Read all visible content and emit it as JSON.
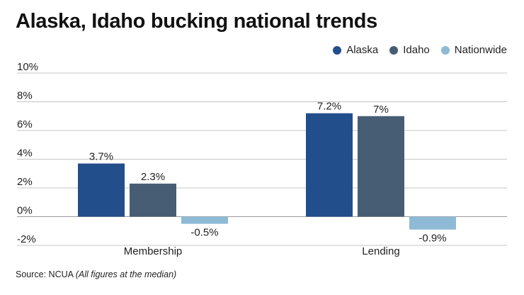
{
  "title": "Alaska, Idaho bucking national trends",
  "source_label": "Source: NCUA",
  "source_note": "(All figures at the median)",
  "chart_data": {
    "type": "bar",
    "categories": [
      "Membership",
      "Lending"
    ],
    "series": [
      {
        "name": "Alaska",
        "color": "#234e8c",
        "values": [
          3.7,
          7.2
        ],
        "labels": [
          "3.7%",
          "7.2%"
        ]
      },
      {
        "name": "Idaho",
        "color": "#475d73",
        "values": [
          2.3,
          7.0
        ],
        "labels": [
          "2.3%",
          "7%"
        ]
      },
      {
        "name": "Nationwide",
        "color": "#8ebad6",
        "values": [
          -0.5,
          -0.9
        ],
        "labels": [
          "-0.5%",
          "-0.9%"
        ]
      }
    ],
    "ylim": [
      -2,
      10
    ],
    "yticks": [
      10,
      8,
      6,
      4,
      2,
      0,
      -2
    ],
    "ytick_labels": [
      "10%",
      "8%",
      "6%",
      "4%",
      "2%",
      "0%",
      "-2%"
    ],
    "grid": true,
    "legend": "top-right",
    "xlabel": "",
    "ylabel": ""
  }
}
